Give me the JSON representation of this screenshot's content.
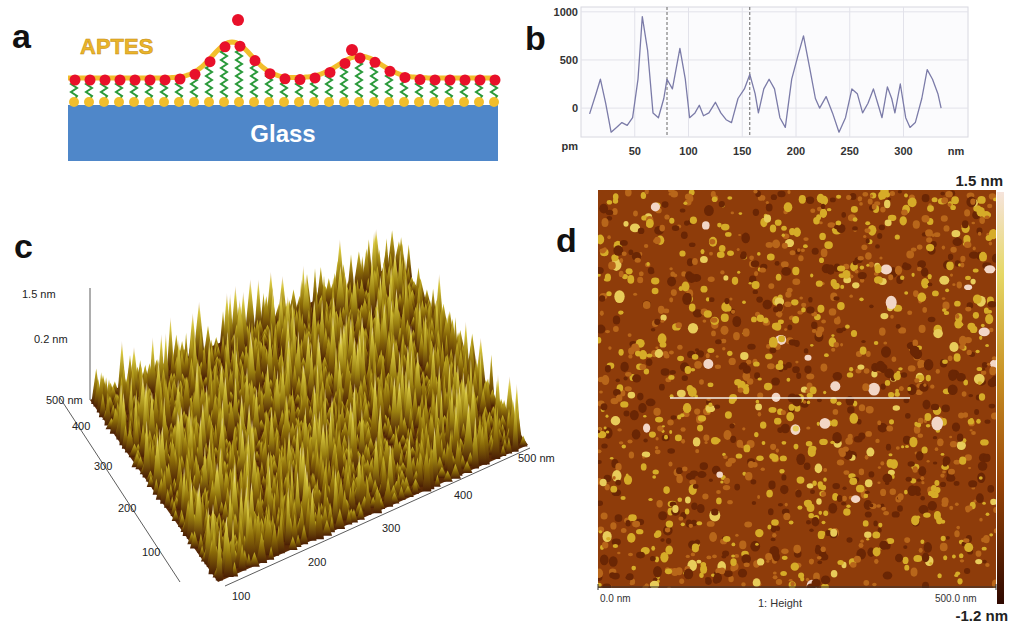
{
  "chart_data": {
    "type": "line",
    "xlabel": "nm",
    "ylabel": "pm",
    "x": [
      8,
      14,
      18,
      23,
      28,
      33,
      38,
      43,
      48,
      53,
      57,
      62,
      67,
      72,
      77,
      80,
      85,
      92,
      97,
      101,
      106,
      110,
      114,
      119,
      125,
      130,
      135,
      140,
      146,
      152,
      157,
      162,
      165,
      170,
      175,
      180,
      185,
      190,
      196,
      202,
      207,
      213,
      218,
      222,
      228,
      234,
      240,
      246,
      252,
      257,
      262,
      267,
      272,
      276,
      280,
      285,
      289,
      292,
      297,
      302,
      306,
      311,
      317,
      322,
      327,
      332,
      335
    ],
    "values": [
      -60,
      150,
      300,
      50,
      -250,
      -200,
      -150,
      -180,
      -100,
      300,
      950,
      600,
      -50,
      -100,
      100,
      300,
      200,
      620,
      300,
      -100,
      -50,
      30,
      -80,
      -50,
      60,
      -50,
      -120,
      -150,
      100,
      200,
      350,
      150,
      -50,
      200,
      300,
      200,
      -100,
      -200,
      300,
      550,
      750,
      400,
      100,
      0,
      120,
      -50,
      -250,
      -100,
      200,
      150,
      -50,
      50,
      200,
      50,
      -100,
      220,
      100,
      -50,
      250,
      -100,
      -200,
      -150,
      100,
      400,
      300,
      150,
      0
    ],
    "xlim": [
      0,
      360
    ],
    "ylim": [
      -300,
      1050
    ],
    "xticks": [
      50,
      100,
      150,
      200,
      250,
      300
    ],
    "yticks": [
      0,
      500,
      1000
    ],
    "grid": true,
    "color": "#7b7ba8",
    "cursors": [
      80,
      157
    ]
  },
  "figure": {
    "panels": [
      "a",
      "b",
      "c",
      "d"
    ],
    "schematic": {
      "layer": "APTES",
      "substrate": "Glass"
    },
    "surface3d": {
      "z_labels": [
        "1.5 nm",
        "0.2 nm"
      ],
      "y_labels": [
        "500 nm",
        "400",
        "300",
        "200",
        "100"
      ],
      "x_labels": [
        "100",
        "200",
        "300",
        "400",
        "500 nm"
      ]
    },
    "height_map": {
      "colorbar_max": "1.5 nm",
      "colorbar_min": "-1.2 nm",
      "x_start": "0.0 nm",
      "x_end": "500.0 nm",
      "channel": "1: Height"
    }
  }
}
